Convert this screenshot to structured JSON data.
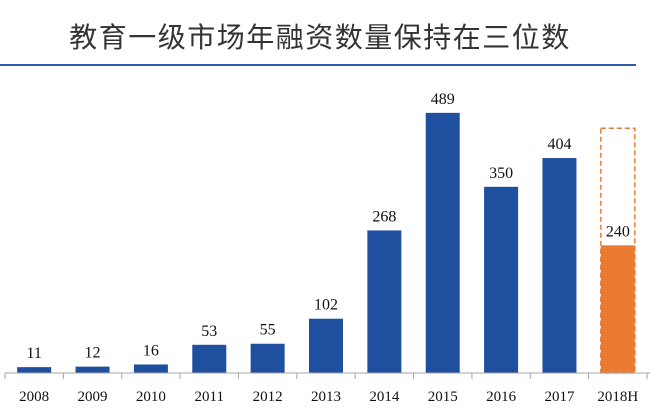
{
  "colors": {
    "title_rule": "#2f5aa8",
    "bar": "#1f4f9f",
    "axis": "#a6a6a6"
  },
  "chart_data": {
    "type": "bar",
    "title": "教育一级市场年融资数量保持在三位数",
    "categories": [
      "2008",
      "2009",
      "2010",
      "2011",
      "2012",
      "2013",
      "2014",
      "2015",
      "2016",
      "2017",
      "2018H"
    ],
    "values": [
      11,
      12,
      16,
      53,
      55,
      102,
      268,
      489,
      350,
      404,
      240
    ],
    "ylim": [
      0,
      500
    ],
    "grid": false,
    "legend": "none",
    "highlight": {
      "category": "2018H",
      "color": "#ec7b32"
    },
    "dashed_outline": {
      "category": "2018H",
      "value": 460,
      "color": "#ec7b32"
    }
  }
}
